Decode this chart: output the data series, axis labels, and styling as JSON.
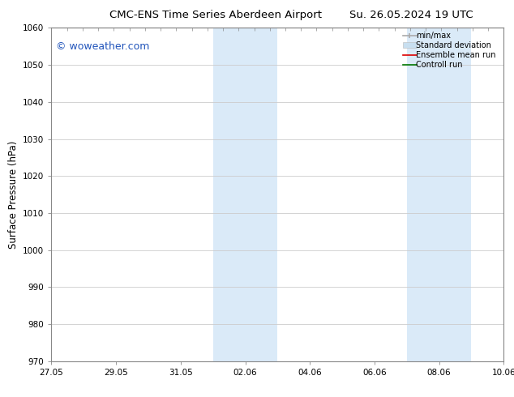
{
  "title_left": "CMC-ENS Time Series Aberdeen Airport",
  "title_right": "Su. 26.05.2024 19 UTC",
  "ylabel": "Surface Pressure (hPa)",
  "ylim": [
    970,
    1060
  ],
  "yticks": [
    970,
    980,
    990,
    1000,
    1010,
    1020,
    1030,
    1040,
    1050,
    1060
  ],
  "xtick_labels": [
    "27.05",
    "29.05",
    "31.05",
    "02.06",
    "04.06",
    "06.06",
    "08.06",
    "10.06"
  ],
  "xtick_positions": [
    0,
    2,
    4,
    6,
    8,
    10,
    12,
    14
  ],
  "xlim": [
    0,
    14
  ],
  "shaded_regions": [
    {
      "x_start": 5,
      "x_end": 7
    },
    {
      "x_start": 11,
      "x_end": 13
    }
  ],
  "shaded_color": "#daeaf8",
  "watermark_text": "© woweather.com",
  "watermark_color": "#2255bb",
  "watermark_fontsize": 9,
  "legend_items": [
    {
      "label": "min/max",
      "color": "#aaaaaa",
      "lw": 1.2,
      "style": "line_with_caps"
    },
    {
      "label": "Standard deviation",
      "color": "#c8dff0",
      "lw": 6,
      "style": "thick"
    },
    {
      "label": "Ensemble mean run",
      "color": "#dd0000",
      "lw": 1.2,
      "style": "line"
    },
    {
      "label": "Controll run",
      "color": "#007700",
      "lw": 1.2,
      "style": "line"
    }
  ],
  "bg_color": "#ffffff",
  "plot_bg_color": "#ffffff",
  "grid_color": "#cccccc",
  "spine_color": "#888888",
  "title_fontsize": 9.5,
  "tick_fontsize": 7.5,
  "label_fontsize": 8.5,
  "legend_fontsize": 7,
  "fig_width": 6.34,
  "fig_height": 4.9,
  "dpi": 100
}
